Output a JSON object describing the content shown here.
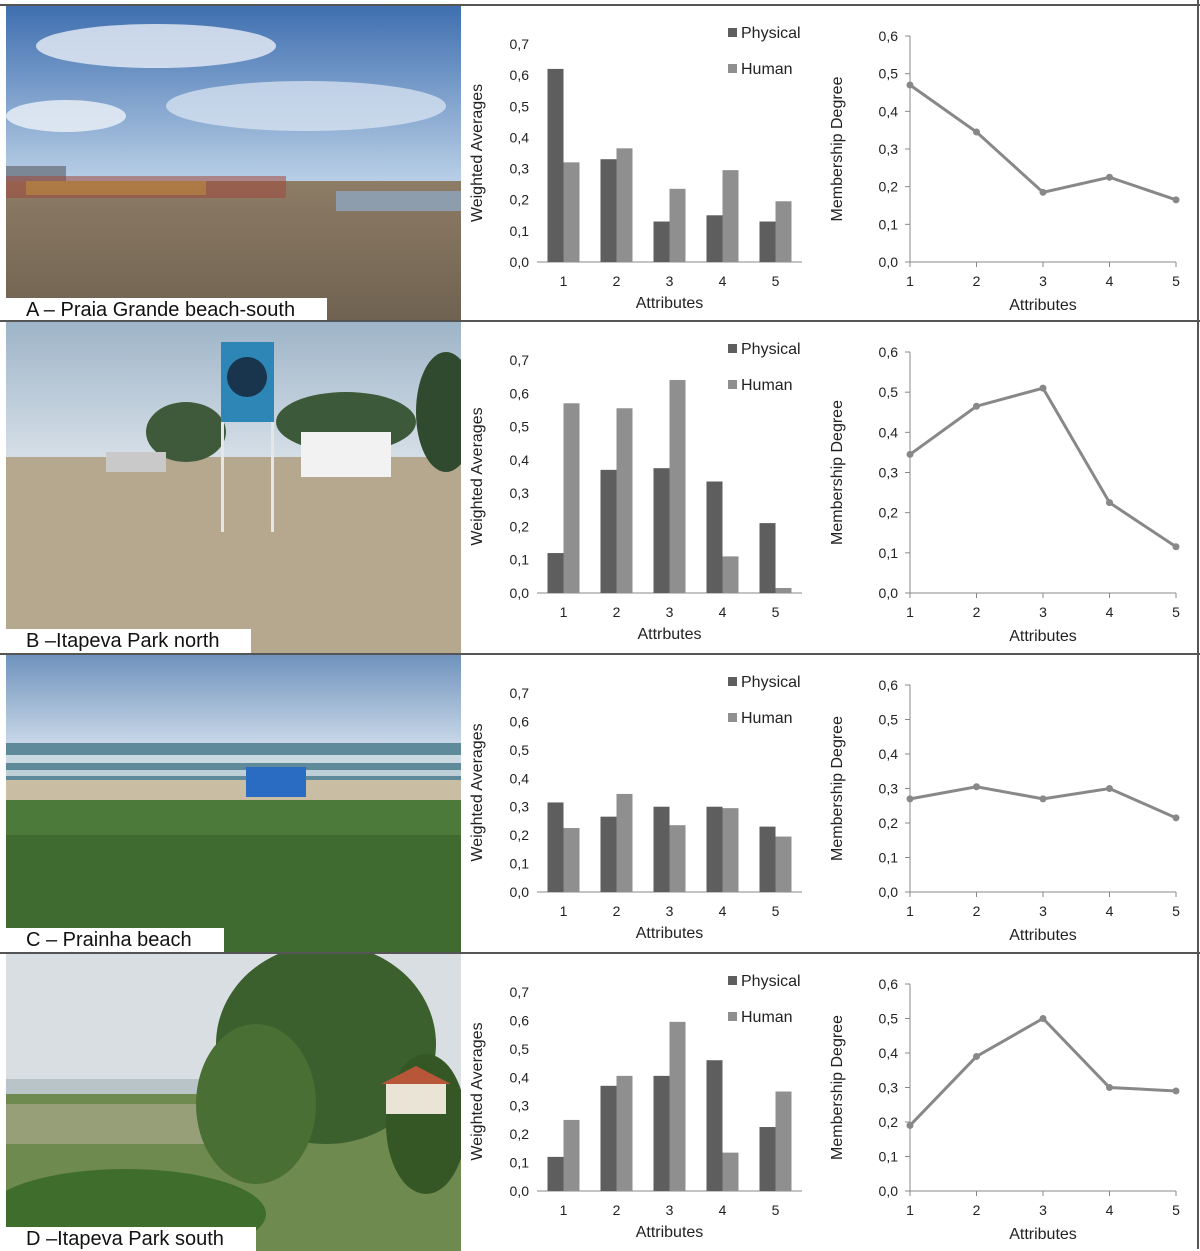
{
  "colors": {
    "physical": "#5e5e5e",
    "human": "#8f8f8f",
    "line": "#888888"
  },
  "panels": [
    {
      "caption": "A – Praia Grande beach-south"
    },
    {
      "caption": "B –Itapeva Park north"
    },
    {
      "caption": "C – Prainha beach"
    },
    {
      "caption": "D –Itapeva Park south"
    }
  ],
  "chart_data": [
    {
      "panel": "A",
      "type": "bar",
      "categories": [
        "1",
        "2",
        "3",
        "4",
        "5"
      ],
      "series": [
        {
          "name": "Physical",
          "values": [
            0.62,
            0.33,
            0.13,
            0.15,
            0.13
          ]
        },
        {
          "name": "Human",
          "values": [
            0.32,
            0.365,
            0.235,
            0.295,
            0.195
          ]
        }
      ],
      "xlabel": "Attributes",
      "ylabel": "Weighted Averages",
      "ylim": [
        0,
        0.7
      ],
      "yticks": [
        "0,0",
        "0,1",
        "0,2",
        "0,3",
        "0,4",
        "0,5",
        "0,6",
        "0,7"
      ],
      "legend": "top-right"
    },
    {
      "panel": "A",
      "type": "line",
      "x": [
        "1",
        "2",
        "3",
        "4",
        "5"
      ],
      "values": [
        0.47,
        0.345,
        0.185,
        0.225,
        0.165
      ],
      "xlabel": "Attributes",
      "ylabel": "Membership Degree",
      "ylim": [
        0,
        0.6
      ],
      "yticks": [
        "0,0",
        "0,1",
        "0,2",
        "0,3",
        "0,4",
        "0,5",
        "0,6"
      ]
    },
    {
      "panel": "B",
      "type": "bar",
      "categories": [
        "1",
        "2",
        "3",
        "4",
        "5"
      ],
      "series": [
        {
          "name": "Physical",
          "values": [
            0.12,
            0.37,
            0.375,
            0.335,
            0.21
          ]
        },
        {
          "name": "Human",
          "values": [
            0.57,
            0.555,
            0.64,
            0.11,
            0.015
          ]
        }
      ],
      "xlabel": "Attrbutes",
      "ylabel": "Weighted Averages",
      "ylim": [
        0,
        0.7
      ],
      "yticks": [
        "0,0",
        "0,1",
        "0,2",
        "0,3",
        "0,4",
        "0,5",
        "0,6",
        "0,7"
      ],
      "legend": "top-right"
    },
    {
      "panel": "B",
      "type": "line",
      "x": [
        "1",
        "2",
        "3",
        "4",
        "5"
      ],
      "values": [
        0.345,
        0.465,
        0.51,
        0.225,
        0.115
      ],
      "xlabel": "Attributes",
      "ylabel": "Membership Degree",
      "ylim": [
        0,
        0.6
      ],
      "yticks": [
        "0,0",
        "0,1",
        "0,2",
        "0,3",
        "0,4",
        "0,5",
        "0,6"
      ]
    },
    {
      "panel": "C",
      "type": "bar",
      "categories": [
        "1",
        "2",
        "3",
        "4",
        "5"
      ],
      "series": [
        {
          "name": "Physical",
          "values": [
            0.315,
            0.265,
            0.3,
            0.3,
            0.23
          ]
        },
        {
          "name": "Human",
          "values": [
            0.225,
            0.345,
            0.235,
            0.295,
            0.195
          ]
        }
      ],
      "xlabel": "Attributes",
      "ylabel": "Weighted Averages",
      "ylim": [
        0,
        0.7
      ],
      "yticks": [
        "0,0",
        "0,1",
        "0,2",
        "0,3",
        "0,4",
        "0,5",
        "0,6",
        "0,7"
      ],
      "legend": "top-right"
    },
    {
      "panel": "C",
      "type": "line",
      "x": [
        "1",
        "2",
        "3",
        "4",
        "5"
      ],
      "values": [
        0.27,
        0.305,
        0.27,
        0.3,
        0.215
      ],
      "xlabel": "Attributes",
      "ylabel": "Membership Degree",
      "ylim": [
        0,
        0.6
      ],
      "yticks": [
        "0,0",
        "0,1",
        "0,2",
        "0,3",
        "0,4",
        "0,5",
        "0,6"
      ]
    },
    {
      "panel": "D",
      "type": "bar",
      "categories": [
        "1",
        "2",
        "3",
        "4",
        "5"
      ],
      "series": [
        {
          "name": "Physical",
          "values": [
            0.12,
            0.37,
            0.405,
            0.46,
            0.225
          ]
        },
        {
          "name": "Human",
          "values": [
            0.25,
            0.405,
            0.595,
            0.135,
            0.35
          ]
        }
      ],
      "xlabel": "Attributes",
      "ylabel": "Weighted Averages",
      "ylim": [
        0,
        0.7
      ],
      "yticks": [
        "0,0",
        "0,1",
        "0,2",
        "0,3",
        "0,4",
        "0,5",
        "0,6",
        "0,7"
      ],
      "legend": "top-right"
    },
    {
      "panel": "D",
      "type": "line",
      "x": [
        "1",
        "2",
        "3",
        "4",
        "5"
      ],
      "values": [
        0.19,
        0.39,
        0.5,
        0.3,
        0.29
      ],
      "xlabel": "Attributes",
      "ylabel": "Membership Degree",
      "ylim": [
        0,
        0.6
      ],
      "yticks": [
        "0,0",
        "0,1",
        "0,2",
        "0,3",
        "0,4",
        "0,5",
        "0,6"
      ]
    }
  ]
}
